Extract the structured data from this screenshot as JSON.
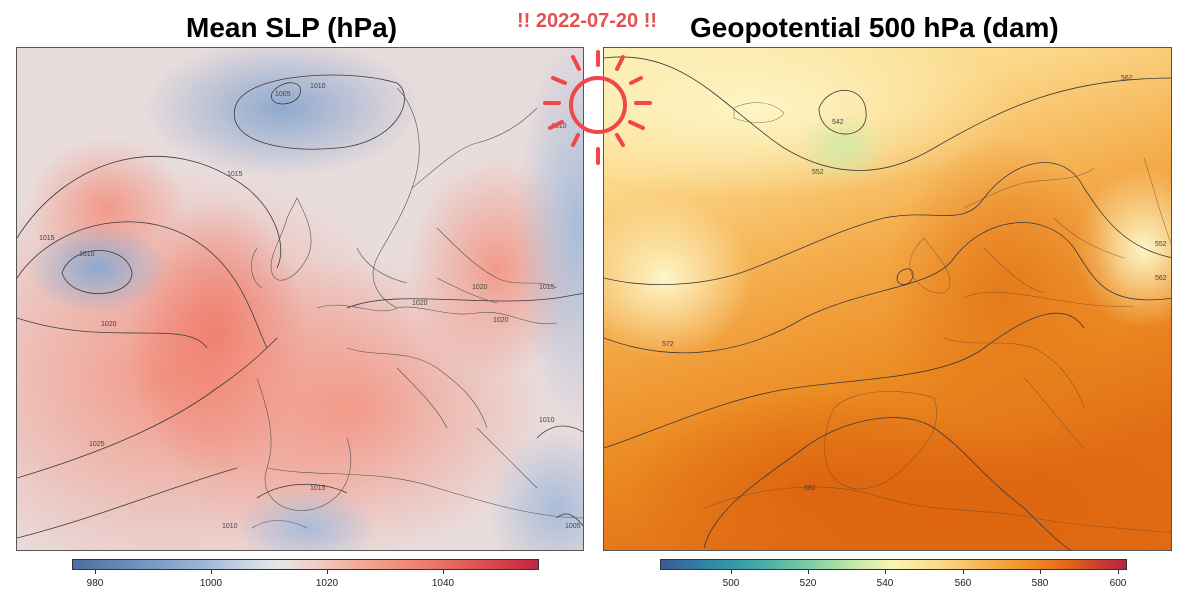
{
  "date_label": "!! 2022-07-20 !!",
  "panels": {
    "left": {
      "title": "Mean SLP (hPa)",
      "colorbar_ticks": [
        "980",
        "1000",
        "1020",
        "1040"
      ],
      "contour_labels": [
        "1010",
        "1005",
        "1015",
        "1015",
        "1010",
        "1020",
        "1025",
        "1020",
        "1020",
        "1020",
        "1015",
        "1015",
        "1010",
        "1010",
        "1005",
        "1010"
      ]
    },
    "right": {
      "title": "Geopotential 500 hPa (dam)",
      "colorbar_ticks": [
        "500",
        "520",
        "540",
        "560",
        "580",
        "600"
      ],
      "contour_labels": [
        "562",
        "542",
        "552",
        "552",
        "562",
        "572",
        "582"
      ]
    }
  },
  "icons": {
    "sun": "sun-icon"
  },
  "colors": {
    "date_label": "#e8504f",
    "sun": "#f0474a",
    "slp_low": "#4a6fa0",
    "slp_high": "#c4263e",
    "z500_low": "#3a5c94",
    "z500_high": "#b52745"
  }
}
